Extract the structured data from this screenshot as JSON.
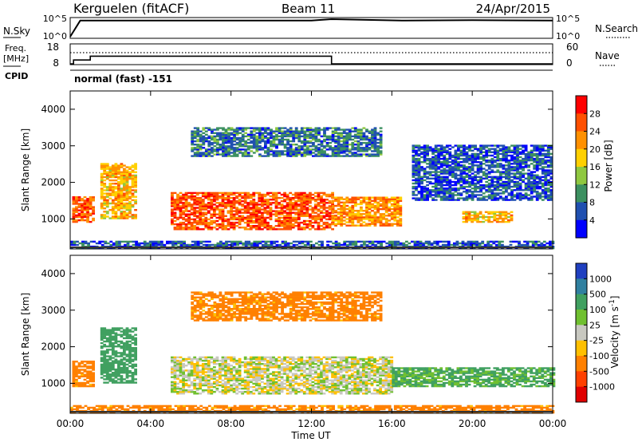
{
  "header": {
    "station": "Kerguelen (fitACF)",
    "beam": "Beam 11",
    "date": "24/Apr/2015"
  },
  "top_panels": {
    "nsky_label": "N.Sky",
    "nsearch_label": "N.Search",
    "nsky_ticks": [
      "10^5",
      "10^0"
    ],
    "nsearch_ticks": [
      "10^5",
      "10^0"
    ],
    "freq_label_1": "Freq.",
    "freq_label_2": "[MHz]",
    "freq_ticks": [
      "18",
      "8"
    ],
    "nave_label": "Nave",
    "nave_ticks": [
      "60",
      "0"
    ],
    "cpid_label": "CPID",
    "cpid_text": "normal (fast) -151"
  },
  "chart_data": [
    {
      "type": "line",
      "panel": "N.Sky / N.Search",
      "series": [
        {
          "name": "N.Sky",
          "x": [
            "00:00",
            "00:30",
            "02:00",
            "06:00",
            "10:00",
            "12:00",
            "13:00",
            "15:00",
            "16:30",
            "20:00",
            "24:00"
          ],
          "y": [
            1,
            40000,
            40000,
            40000,
            40000,
            40000,
            100000,
            60000,
            40000,
            50000,
            40000
          ]
        }
      ]
    },
    {
      "type": "line",
      "panel": "Freq. / Nave",
      "series": [
        {
          "name": "Freq.",
          "x": [
            "00:00",
            "00:10",
            "01:00",
            "13:00",
            "24:00"
          ],
          "y": [
            8,
            10,
            12,
            8,
            8
          ]
        },
        {
          "name": "Nave",
          "x": [
            "00:00",
            "24:00"
          ],
          "y": [
            45,
            45
          ]
        }
      ]
    },
    {
      "type": "heatmap",
      "title": "",
      "xlabel": "Time UT",
      "ylabel": "Slant Range [km]",
      "x_ticks": [
        "00:00",
        "04:00",
        "08:00",
        "12:00",
        "16:00",
        "20:00",
        "00:00"
      ],
      "y_ticks": [
        4000,
        3000,
        2000,
        1000
      ],
      "ylim": [
        180,
        4500
      ],
      "xlim_hours": [
        0,
        24
      ],
      "colorbar": {
        "label": "Power [dB]",
        "ticks": [
          "28",
          "24",
          "20",
          "16",
          "12",
          "8",
          "4"
        ],
        "colors": [
          "#ff0000",
          "#ff5000",
          "#ff9000",
          "#ffd000",
          "#8fc840",
          "#3c9060",
          "#2050b0",
          "#0000ff"
        ]
      },
      "regions": [
        {
          "t": [
            0.1,
            1.2
          ],
          "r": [
            900,
            1600
          ],
          "power": 25
        },
        {
          "t": [
            1.5,
            3.2
          ],
          "r": [
            1000,
            2500
          ],
          "power": 20
        },
        {
          "t": [
            5.0,
            13.0
          ],
          "r": [
            700,
            1700
          ],
          "power": 26
        },
        {
          "t": [
            13.0,
            16.5
          ],
          "r": [
            800,
            1600
          ],
          "power": 22
        },
        {
          "t": [
            6.0,
            15.5
          ],
          "r": [
            2700,
            3500
          ],
          "power": 8
        },
        {
          "t": [
            17.0,
            24.0
          ],
          "r": [
            1500,
            3000
          ],
          "power": 6
        },
        {
          "t": [
            19.5,
            22.0
          ],
          "r": [
            900,
            1200
          ],
          "power": 20
        },
        {
          "t": [
            0.0,
            24.0
          ],
          "r": [
            180,
            400
          ],
          "power": 6
        }
      ]
    },
    {
      "type": "heatmap",
      "title": "",
      "xlabel": "Time UT",
      "ylabel": "Slant Range [km]",
      "x_ticks": [
        "00:00",
        "04:00",
        "08:00",
        "12:00",
        "16:00",
        "20:00",
        "00:00"
      ],
      "y_ticks": [
        4000,
        3000,
        2000,
        1000
      ],
      "ylim": [
        180,
        4500
      ],
      "xlim_hours": [
        0,
        24
      ],
      "colorbar": {
        "label": "Velocity [m s^-1]",
        "ticks": [
          "1000",
          "500",
          "100",
          "25",
          "-25",
          "-100",
          "-500",
          "-1000"
        ],
        "colors": [
          "#2040c0",
          "#3080a0",
          "#40a060",
          "#70c030",
          "#c8c8c0",
          "#ffc000",
          "#ff8000",
          "#ff4000",
          "#e00000"
        ]
      },
      "regions": [
        {
          "t": [
            0.1,
            1.2
          ],
          "r": [
            900,
            1600
          ],
          "velocity": -150
        },
        {
          "t": [
            1.5,
            3.2
          ],
          "r": [
            1000,
            2500
          ],
          "velocity": 300
        },
        {
          "t": [
            5.0,
            16.0
          ],
          "r": [
            700,
            1700
          ],
          "velocity": 0
        },
        {
          "t": [
            6.0,
            15.5
          ],
          "r": [
            2700,
            3500
          ],
          "velocity": -150
        },
        {
          "t": [
            16.0,
            24.0
          ],
          "r": [
            900,
            1400
          ],
          "velocity": 120
        },
        {
          "t": [
            0.0,
            24.0
          ],
          "r": [
            180,
            400
          ],
          "velocity": -150
        }
      ]
    }
  ],
  "colors": {
    "axis": "#000000",
    "background": "#ffffff"
  }
}
